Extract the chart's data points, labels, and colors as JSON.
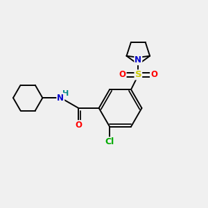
{
  "background_color": "#f0f0f0",
  "figsize": [
    3.0,
    3.0
  ],
  "dpi": 100,
  "atom_colors": {
    "N": "#0000cc",
    "O": "#ff0000",
    "S": "#cccc00",
    "Cl": "#00aa00",
    "H_N": "#008888"
  },
  "bond_color": "#000000",
  "bond_width": 1.4,
  "font_size": 8.5
}
